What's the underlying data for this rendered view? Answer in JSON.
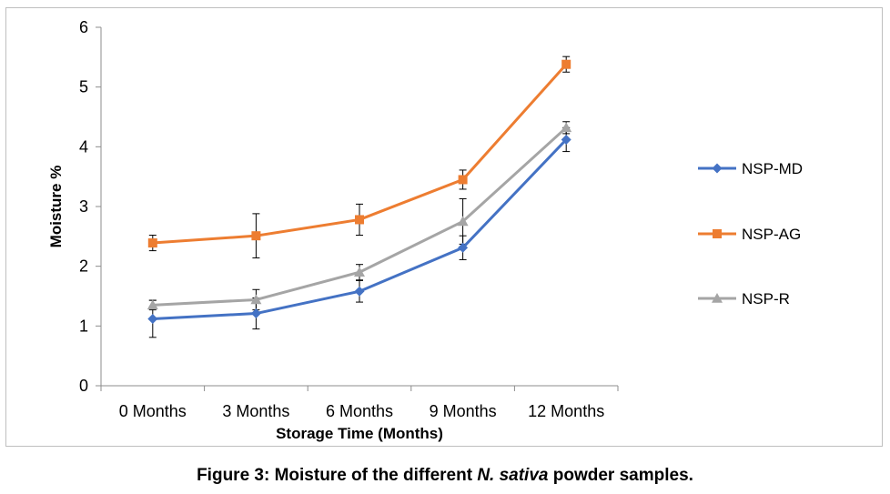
{
  "caption": {
    "prefix": "Figure 3: Moisture of the different ",
    "species": "N. sativa",
    "suffix": " powder samples."
  },
  "chart_data": {
    "type": "line",
    "categories": [
      "0 Months",
      "3 Months",
      "6 Months",
      "9 Months",
      "12 Months"
    ],
    "xlabel": "Storage Time (Months)",
    "ylabel": "Moisture %",
    "ylim": [
      0,
      6
    ],
    "yticks": [
      0,
      1,
      2,
      3,
      4,
      5,
      6
    ],
    "grid": false,
    "legend_position": "right",
    "series": [
      {
        "name": "NSP-MD",
        "color": "#4472C4",
        "marker": "diamond",
        "values": [
          1.12,
          1.21,
          1.58,
          2.31,
          4.12
        ],
        "errors": [
          0.31,
          0.26,
          0.18,
          0.2,
          0.2
        ]
      },
      {
        "name": "NSP-AG",
        "color": "#ED7D31",
        "marker": "square",
        "values": [
          2.39,
          2.51,
          2.78,
          3.45,
          5.38
        ],
        "errors": [
          0.13,
          0.37,
          0.26,
          0.16,
          0.13
        ]
      },
      {
        "name": "NSP-R",
        "color": "#A5A5A5",
        "marker": "triangle",
        "values": [
          1.35,
          1.44,
          1.9,
          2.75,
          4.32
        ],
        "errors": [
          0.08,
          0.17,
          0.13,
          0.38,
          0.1
        ]
      }
    ]
  }
}
